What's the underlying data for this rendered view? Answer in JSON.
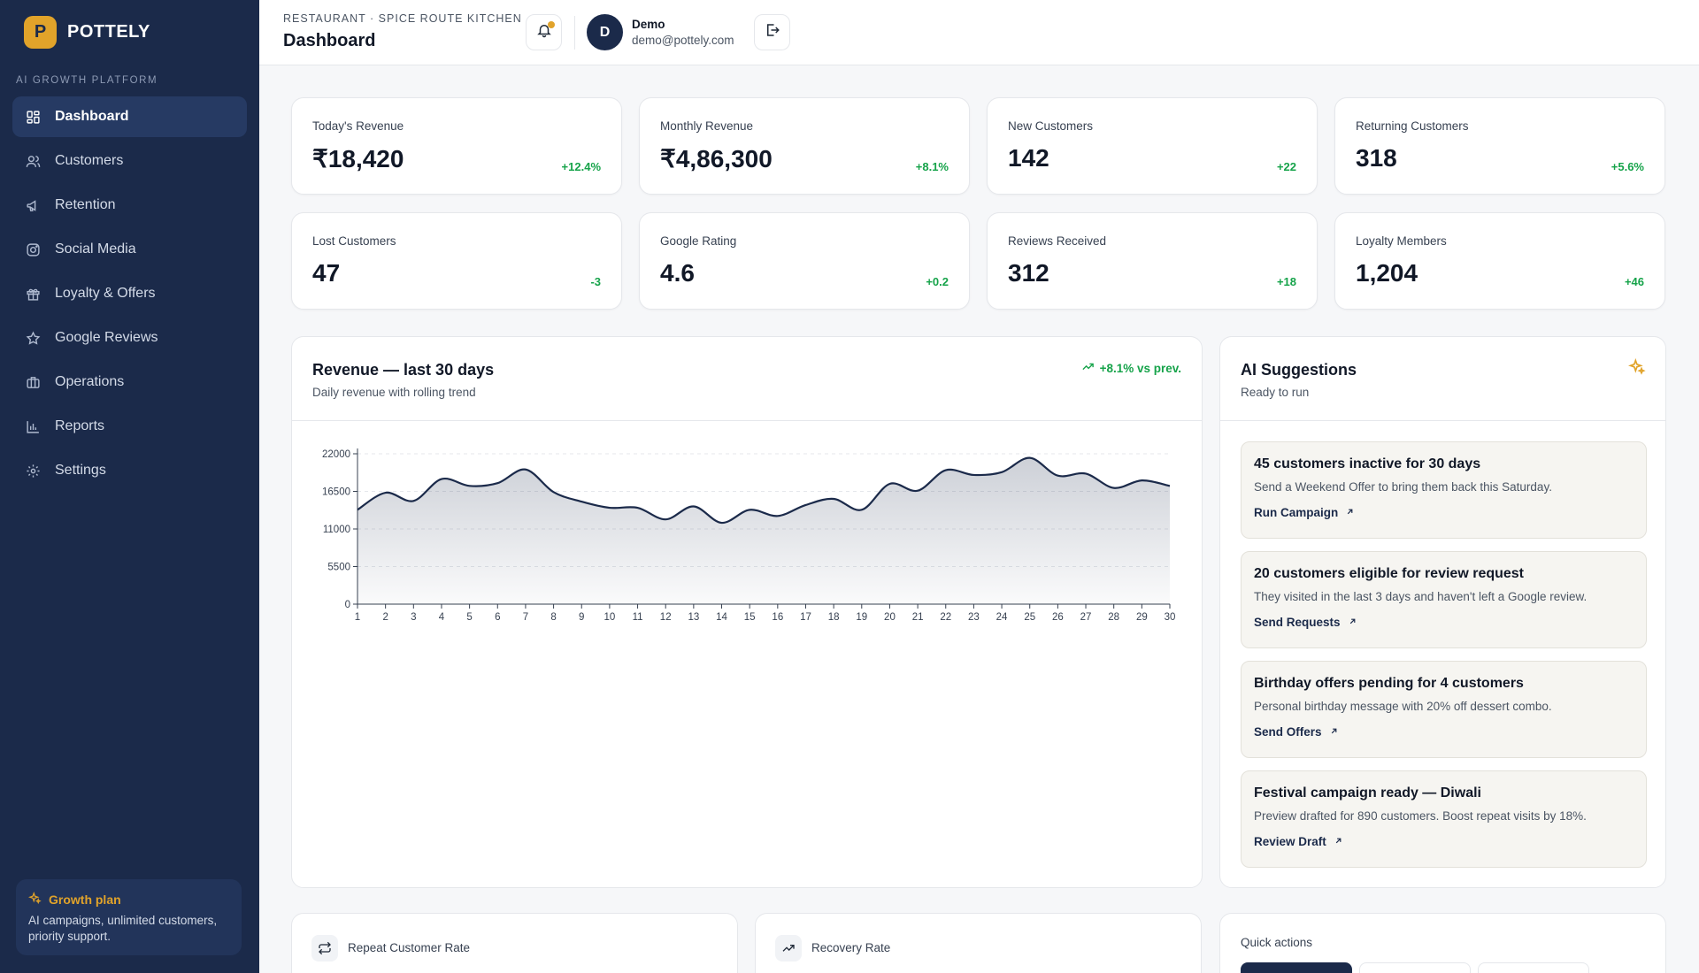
{
  "brand": {
    "logo_letter": "P",
    "name": "POTTELY",
    "platform_label": "AI GROWTH PLATFORM"
  },
  "sidebar": {
    "items": [
      {
        "label": "Dashboard",
        "icon": "grid-icon",
        "active": true
      },
      {
        "label": "Customers",
        "icon": "users-icon"
      },
      {
        "label": "Retention",
        "icon": "megaphone-icon"
      },
      {
        "label": "Social Media",
        "icon": "instagram-icon"
      },
      {
        "label": "Loyalty & Offers",
        "icon": "gift-icon"
      },
      {
        "label": "Google Reviews",
        "icon": "star-icon"
      },
      {
        "label": "Operations",
        "icon": "briefcase-icon"
      },
      {
        "label": "Reports",
        "icon": "bar-chart-icon"
      },
      {
        "label": "Settings",
        "icon": "gear-icon"
      }
    ],
    "plan": {
      "title": "Growth plan",
      "text": "AI campaigns, unlimited customers, priority support."
    }
  },
  "header": {
    "breadcrumb": "RESTAURANT · SPICE ROUTE KITCHEN",
    "title": "Dashboard",
    "user": {
      "initial": "D",
      "name": "Demo",
      "email": "demo@pottely.com"
    }
  },
  "kpis": [
    {
      "label": "Today's Revenue",
      "value": "₹18,420",
      "delta": "+12.4%"
    },
    {
      "label": "Monthly Revenue",
      "value": "₹4,86,300",
      "delta": "+8.1%"
    },
    {
      "label": "New Customers",
      "value": "142",
      "delta": "+22"
    },
    {
      "label": "Returning Customers",
      "value": "318",
      "delta": "+5.6%"
    },
    {
      "label": "Lost Customers",
      "value": "47",
      "delta": "-3"
    },
    {
      "label": "Google Rating",
      "value": "4.6",
      "delta": "+0.2"
    },
    {
      "label": "Reviews Received",
      "value": "312",
      "delta": "+18"
    },
    {
      "label": "Loyalty Members",
      "value": "1,204",
      "delta": "+46"
    }
  ],
  "revenue": {
    "title": "Revenue — last 30 days",
    "subtitle": "Daily revenue with rolling trend",
    "badge": "+8.1% vs prev."
  },
  "chart_data": {
    "type": "area",
    "title": "Revenue — last 30 days",
    "x": [
      1,
      2,
      3,
      4,
      5,
      6,
      7,
      8,
      9,
      10,
      11,
      12,
      13,
      14,
      15,
      16,
      17,
      18,
      19,
      20,
      21,
      22,
      23,
      24,
      25,
      26,
      27,
      28,
      29,
      30
    ],
    "values": [
      13800,
      16300,
      15100,
      18300,
      17300,
      17700,
      19700,
      16400,
      15000,
      14100,
      14100,
      12400,
      14300,
      11900,
      13800,
      12900,
      14500,
      15400,
      13800,
      17600,
      16600,
      19600,
      18900,
      19300,
      21400,
      18800,
      19100,
      17000,
      18100,
      17300
    ],
    "xlim": [
      1,
      30
    ],
    "ylim": [
      0,
      22000
    ],
    "yticks": [
      0,
      5500,
      11000,
      16500,
      22000
    ],
    "grid": true,
    "line_color": "#1b2a4a"
  },
  "ai": {
    "title": "AI Suggestions",
    "subtitle": "Ready to run",
    "suggestions": [
      {
        "title": "45 customers inactive for 30 days",
        "desc": "Send a Weekend Offer to bring them back this Saturday.",
        "action": "Run Campaign"
      },
      {
        "title": "20 customers eligible for review request",
        "desc": "They visited in the last 3 days and haven't left a Google review.",
        "action": "Send Requests"
      },
      {
        "title": "Birthday offers pending for 4 customers",
        "desc": "Personal birthday message with 20% off dessert combo.",
        "action": "Send Offers"
      },
      {
        "title": "Festival campaign ready — Diwali",
        "desc": "Preview drafted for 890 customers. Boost repeat visits by 18%.",
        "action": "Review Draft"
      }
    ]
  },
  "bottom": {
    "repeat_rate": "Repeat Customer Rate",
    "recovery_rate": "Recovery Rate",
    "quick_actions": "Quick actions"
  },
  "colors": {
    "sidebar": "#1b2a4a",
    "accent": "#e1a32a",
    "positive": "#16a34a"
  }
}
